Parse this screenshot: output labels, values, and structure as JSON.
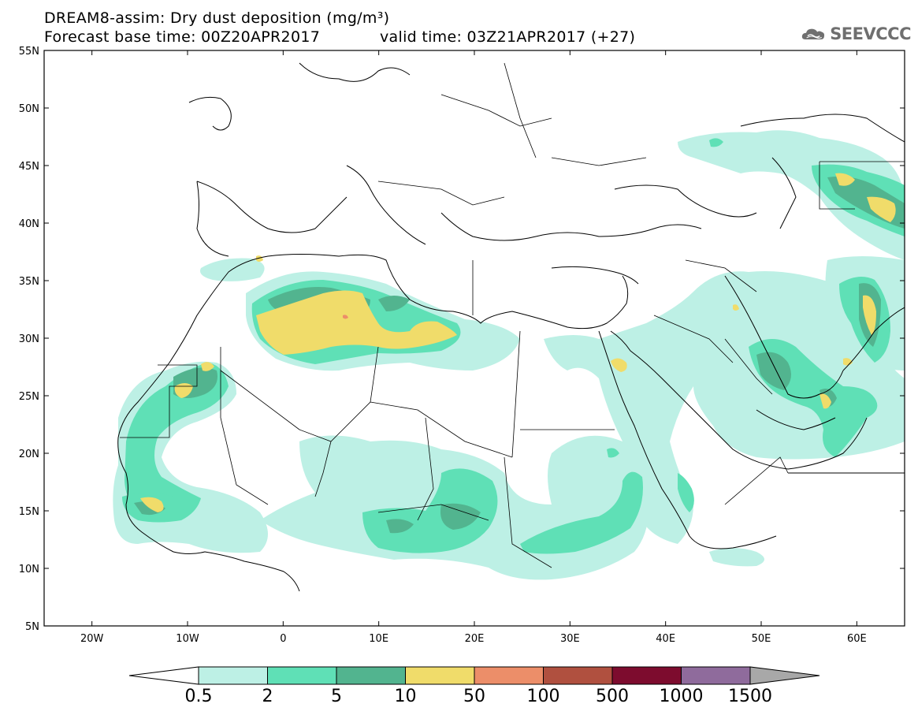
{
  "title": {
    "line1": "DREAM8-assim: Dry dust deposition (mg/m³)",
    "line2": "Forecast base time: 00Z20APR2017",
    "valid": "valid time: 03Z21APR2017 (+27)"
  },
  "logo": {
    "text": "SEEVCCC",
    "icon": "cloud-icon"
  },
  "axes": {
    "lon_labels": [
      "20W",
      "10W",
      "0",
      "10E",
      "20E",
      "30E",
      "40E",
      "50E",
      "60E"
    ],
    "lat_labels": [
      "55N",
      "50N",
      "45N",
      "40N",
      "35N",
      "30N",
      "25N",
      "20N",
      "15N",
      "10N",
      "5N"
    ],
    "lon_range": [
      -25,
      65
    ],
    "lat_range": [
      5,
      55
    ],
    "lon_ticks": [
      -20,
      -10,
      0,
      10,
      20,
      30,
      40,
      50,
      60
    ],
    "lat_ticks": [
      55,
      50,
      45,
      40,
      35,
      30,
      25,
      20,
      15,
      10,
      5
    ]
  },
  "colorbar": {
    "labels": [
      "0.5",
      "2",
      "5",
      "10",
      "50",
      "100",
      "500",
      "1000",
      "1500"
    ],
    "colors": [
      "#bdf0e5",
      "#5fe0b6",
      "#52b48f",
      "#f0dc6a",
      "#ec8e69",
      "#b0503f",
      "#7d0c2e",
      "#8f6b9c"
    ],
    "under_color": "#ffffff",
    "over_color": "#a8a8a8"
  },
  "levels": {
    "lvl1": "#bdf0e5",
    "lvl2": "#5fe0b6",
    "lvl3": "#52b48f",
    "lvl4": "#f0dc6a",
    "lvl5": "#ec8e69"
  }
}
